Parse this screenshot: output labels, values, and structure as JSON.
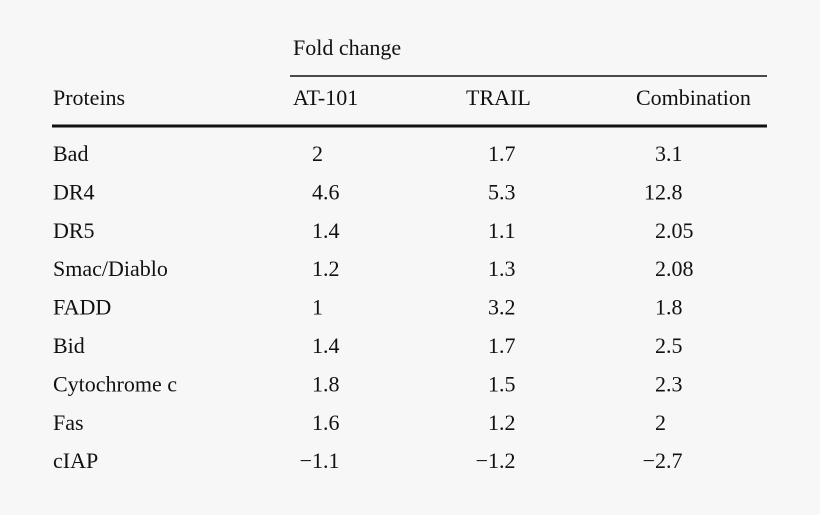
{
  "table": {
    "group_header": "Fold change",
    "columns": [
      "Proteins",
      "AT-101",
      "TRAIL",
      "Combination"
    ],
    "rows": [
      [
        "Bad",
        "2",
        "1.7",
        "3.1"
      ],
      [
        "DR4",
        "4.6",
        "5.3",
        "12.8"
      ],
      [
        "DR5",
        "1.4",
        "1.1",
        "2.05"
      ],
      [
        "Smac/Diablo",
        "1.2",
        "1.3",
        "2.08"
      ],
      [
        "FADD",
        "1",
        "3.2",
        "1.8"
      ],
      [
        "Bid",
        "1.4",
        "1.7",
        "2.5"
      ],
      [
        "Cytochrome c",
        "1.8",
        "1.5",
        "2.3"
      ],
      [
        "Fas",
        "1.6",
        "1.2",
        "2"
      ],
      [
        "cIAP",
        "−1.1",
        "−1.2",
        "−2.7"
      ]
    ]
  }
}
